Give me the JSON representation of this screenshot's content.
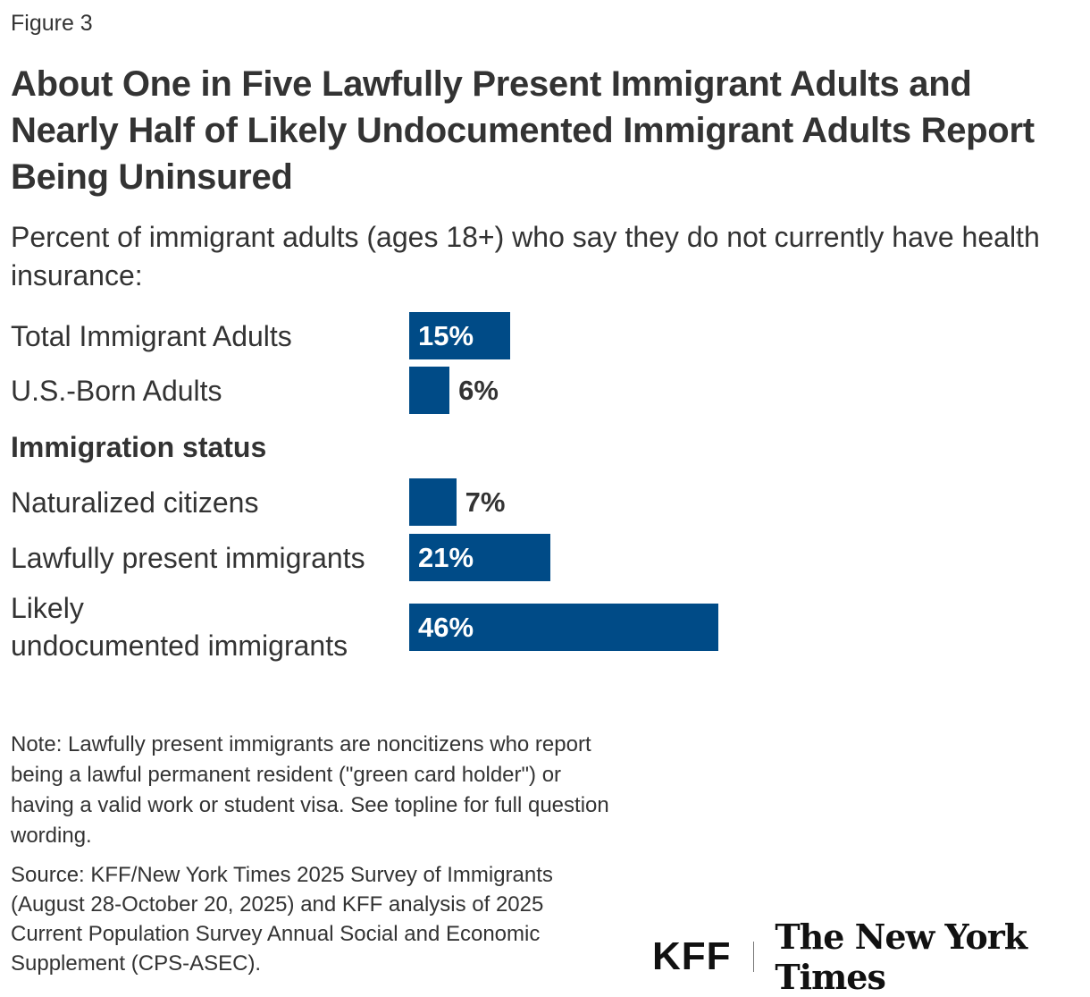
{
  "figure_label": "Figure 3",
  "chart_data": {
    "type": "bar",
    "title": "About One in Five Lawfully Present Immigrant Adults and Nearly Half of Likely Undocumented Immigrant Adults Report Being Uninsured",
    "subtitle": "Percent of immigrant adults (ages 18+) who say they do not currently have health insurance:",
    "xlabel": "",
    "ylabel": "",
    "group_header": "Immigration status",
    "categories": [
      "Total Immigrant Adults",
      "U.S.-Born Adults",
      "Naturalized citizens",
      "Lawfully present immigrants",
      "Likely undocumented immigrants"
    ],
    "values": [
      15,
      6,
      7,
      21,
      46
    ],
    "data_labels": [
      "15%",
      "6%",
      "7%",
      "21%",
      "46%"
    ],
    "bar_color": "#004b87"
  },
  "labels": {
    "cat0": "Total Immigrant Adults",
    "cat1": "U.S.-Born Adults",
    "cat2": "Naturalized citizens",
    "cat3": "Lawfully present immigrants",
    "cat4_line1": "Likely",
    "cat4_line2": "undocumented immigrants"
  },
  "note": "Note: Lawfully present immigrants are noncitizens who report being a lawful permanent resident (\"green card holder\") or having a valid work or student visa. See topline for full question wording.",
  "source": "Source: KFF/New York Times 2025 Survey of Immigrants (August 28-October 20, 2025) and KFF analysis of 2025 Current Population Survey Annual Social and Economic Supplement (CPS-ASEC).",
  "logos": {
    "kff": "KFF",
    "nyt": "The New York Times"
  }
}
